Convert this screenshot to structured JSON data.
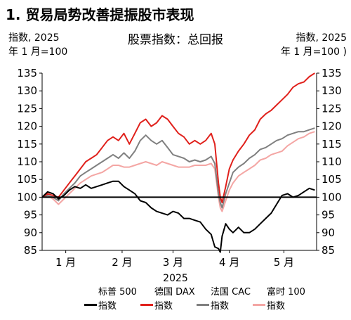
{
  "title": "1. 贸易局势改善提振股市表现",
  "subtitle": "股票指数：总回报",
  "left_unit": [
    "指数, 2025",
    "年 1 月=100"
  ],
  "right_unit": [
    "指数, 2025",
    "年 1 月=100 )"
  ],
  "chart_data": {
    "type": "line",
    "xlabel": "2025",
    "x_tick_labels": [
      "1 月",
      "2 月",
      "3 月",
      "4 月",
      "5 月"
    ],
    "x_tick_days": [
      13,
      44,
      72,
      103,
      133
    ],
    "x_range_days": [
      0,
      151
    ],
    "y_ticks": [
      85,
      90,
      95,
      100,
      105,
      110,
      115,
      120,
      125,
      130,
      135
    ],
    "ylim": [
      85,
      135
    ],
    "reference_line": 100,
    "grid": false,
    "legend_position": "bottom",
    "series": [
      {
        "name": "标普 500 指数",
        "color": "#000000",
        "x": [
          0,
          3,
          6,
          9,
          12,
          15,
          18,
          21,
          24,
          27,
          30,
          33,
          36,
          39,
          42,
          45,
          48,
          51,
          54,
          57,
          60,
          63,
          66,
          69,
          72,
          75,
          78,
          81,
          84,
          87,
          90,
          93,
          95,
          97,
          98,
          99,
          101,
          103,
          105,
          108,
          111,
          114,
          117,
          120,
          123,
          126,
          129,
          132,
          135,
          138,
          141,
          144,
          147,
          150
        ],
        "y": [
          100,
          101.5,
          101,
          99.5,
          100.5,
          102,
          103,
          102.5,
          103.5,
          102.5,
          103,
          103.5,
          104,
          104.5,
          104.5,
          103,
          102,
          101,
          99,
          98.5,
          97,
          96,
          95.5,
          95,
          96,
          95.5,
          94,
          94,
          93.5,
          93,
          91,
          89.5,
          86,
          85.5,
          84.5,
          89,
          92.5,
          91,
          90,
          91.5,
          90,
          90,
          91,
          92.5,
          94,
          95.5,
          98,
          100.5,
          101,
          100,
          100.5,
          101.5,
          102.5,
          102
        ]
      },
      {
        "name": "德国 DAX 指数",
        "color": "#e0201b",
        "x": [
          0,
          3,
          6,
          9,
          12,
          15,
          18,
          21,
          24,
          27,
          30,
          33,
          36,
          39,
          42,
          45,
          48,
          51,
          54,
          57,
          60,
          63,
          66,
          69,
          72,
          75,
          78,
          81,
          84,
          87,
          90,
          93,
          95,
          97,
          98,
          99,
          101,
          103,
          105,
          108,
          111,
          114,
          117,
          120,
          123,
          126,
          129,
          132,
          135,
          138,
          141,
          144,
          147,
          150
        ],
        "y": [
          100,
          101,
          100.5,
          100,
          102,
          104,
          106,
          108,
          110,
          111,
          112,
          114,
          116,
          117,
          116,
          118,
          115,
          118,
          121,
          122,
          120,
          121,
          123,
          122,
          120,
          118,
          117,
          115,
          116,
          115,
          116,
          118,
          115,
          104,
          100,
          98.5,
          103,
          108,
          110.5,
          113,
          115,
          117.5,
          119,
          122,
          123.5,
          124.5,
          126,
          127.5,
          129,
          131,
          132,
          132.5,
          134,
          135
        ]
      },
      {
        "name": "法国 CAC 指数",
        "color": "#808080",
        "x": [
          0,
          3,
          6,
          9,
          12,
          15,
          18,
          21,
          24,
          27,
          30,
          33,
          36,
          39,
          42,
          45,
          48,
          51,
          54,
          57,
          60,
          63,
          66,
          69,
          72,
          75,
          78,
          81,
          84,
          87,
          90,
          93,
          95,
          97,
          98,
          99,
          101,
          103,
          105,
          108,
          111,
          114,
          117,
          120,
          123,
          126,
          129,
          132,
          135,
          138,
          141,
          144,
          147,
          150
        ],
        "y": [
          100,
          100.5,
          100,
          99,
          101,
          102.5,
          104,
          106,
          107,
          108,
          109,
          110,
          111,
          112,
          111,
          112.5,
          111,
          113,
          116,
          117.5,
          116,
          115,
          116,
          114,
          112,
          111.5,
          111,
          110,
          110.5,
          110,
          110.5,
          111.5,
          109.5,
          101,
          98.5,
          97,
          101,
          104,
          107,
          108.5,
          109.5,
          111,
          112,
          113.5,
          114,
          115,
          116,
          116.5,
          117.5,
          118,
          118.5,
          118.5,
          119,
          119.5
        ]
      },
      {
        "name": "富时 100 指数",
        "color": "#f4a6a4",
        "x": [
          0,
          3,
          6,
          9,
          12,
          15,
          18,
          21,
          24,
          27,
          30,
          33,
          36,
          39,
          42,
          45,
          48,
          51,
          54,
          57,
          60,
          63,
          66,
          69,
          72,
          75,
          78,
          81,
          84,
          87,
          90,
          93,
          95,
          97,
          98,
          99,
          101,
          103,
          105,
          108,
          111,
          114,
          117,
          120,
          123,
          126,
          129,
          132,
          135,
          138,
          141,
          144,
          147,
          150
        ],
        "y": [
          100,
          100.5,
          99.5,
          98,
          99.5,
          101,
          102.5,
          104,
          105,
          106,
          106.5,
          107,
          108,
          109,
          109,
          108.5,
          108.5,
          109,
          109.5,
          110,
          109.5,
          109,
          110,
          109.5,
          109,
          108.5,
          108.5,
          108.5,
          109,
          109,
          109,
          109.5,
          108,
          100,
          97,
          96,
          99,
          102,
          104,
          106,
          107,
          108,
          109,
          110.5,
          111,
          112,
          112.5,
          113,
          114.5,
          115.5,
          116.5,
          117,
          118,
          118.5
        ]
      }
    ]
  }
}
